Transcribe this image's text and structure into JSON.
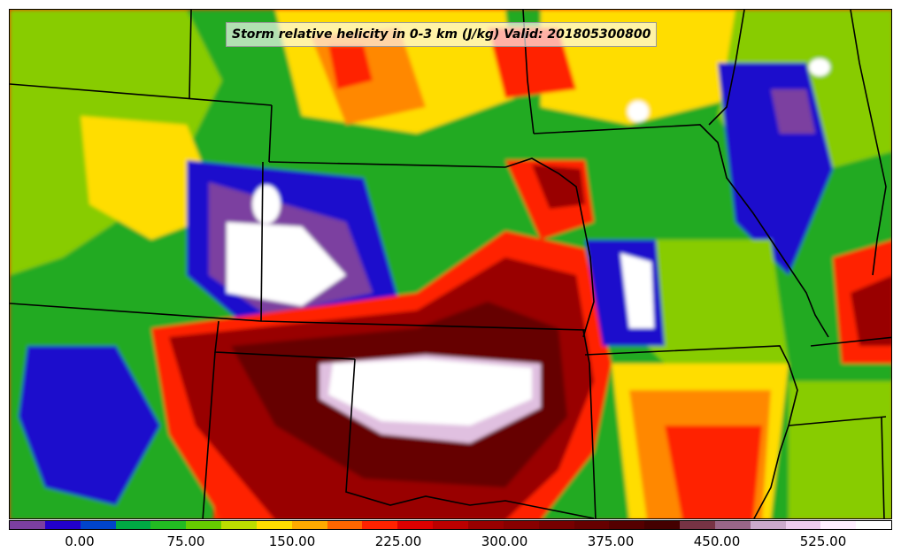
{
  "title": "Storm relative helicity in 0-3 km (J/kg) Valid: 201805300800",
  "legend": {
    "colors": [
      "#7b3fa0",
      "#2200cc",
      "#0044cc",
      "#00aa44",
      "#22bb22",
      "#66cc00",
      "#bbdd00",
      "#ffdd00",
      "#ffaa00",
      "#ff6600",
      "#ff2200",
      "#dd0000",
      "#bb0000",
      "#990000",
      "#880000",
      "#770000",
      "#660000",
      "#550000",
      "#440000",
      "#773344",
      "#996688",
      "#ccaacc",
      "#eeccee",
      "#ffeeff",
      "#ffffff"
    ],
    "ticks": [
      "0.00",
      "75.00",
      "150.00",
      "225.00",
      "300.00",
      "375.00",
      "450.00",
      "525.00"
    ]
  },
  "map": {
    "palette": {
      "purple": "#7b3fa0",
      "blue": "#1a10cc",
      "green": "#22aa22",
      "lime": "#88cc00",
      "yellow": "#ffdd00",
      "orange": "#ff8800",
      "red": "#ff2200",
      "darkred": "#990000",
      "maroon": "#660000",
      "pink": "#e0c0e0",
      "white": "#ffffff"
    }
  }
}
